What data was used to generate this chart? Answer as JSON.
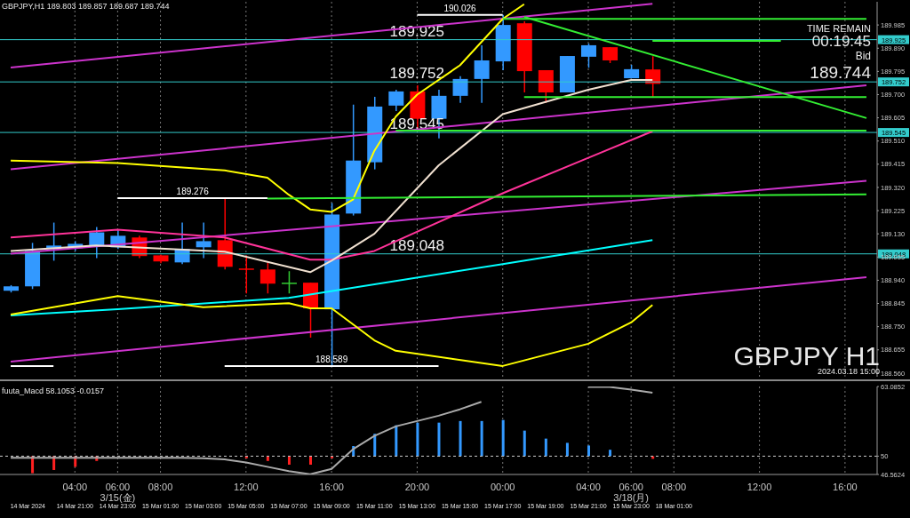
{
  "chart_data": [
    {
      "type": "candlestick",
      "title": "GBPJPY,H1 189.803 189.857 189.687 189.744",
      "categories": [
        null,
        null,
        null,
        null,
        null,
        null,
        null,
        null,
        null,
        null,
        null,
        null,
        null,
        null,
        null,
        null,
        null,
        null,
        null,
        null,
        null,
        null,
        null,
        null,
        null,
        null,
        null,
        null,
        null,
        null,
        null,
        null,
        null,
        null,
        null,
        null,
        null,
        null,
        null,
        null,
        null
      ],
      "tick_labels": "y",
      "grid": "x",
      "ylim": [
        188.545,
        190.08
      ],
      "yticks": [
        {
          "value": 188.56,
          "label": "188.560"
        },
        {
          "value": 188.655,
          "label": "188.655"
        },
        {
          "value": 188.75,
          "label": "188.750"
        },
        {
          "value": 188.845,
          "label": "188.845"
        },
        {
          "value": 188.94,
          "label": "188.940"
        },
        {
          "value": 189.035,
          "label": "189.035"
        },
        {
          "value": 189.13,
          "label": "189.130"
        },
        {
          "value": 189.225,
          "label": "189.225"
        },
        {
          "value": 189.32,
          "label": "189.320"
        },
        {
          "value": 189.415,
          "label": "189.415"
        },
        {
          "value": 189.51,
          "label": "189.510"
        },
        {
          "value": 189.605,
          "label": "189.605"
        },
        {
          "value": 189.7,
          "label": "189.700"
        },
        {
          "value": 189.795,
          "label": "189.795"
        },
        {
          "value": 189.89,
          "label": "189.890"
        },
        {
          "value": 189.985,
          "label": "189.985"
        }
      ],
      "series": [
        {
          "type": "line",
          "color": "#cc33cc",
          "values": [
            189.811,
            null,
            null,
            null,
            null,
            null,
            null,
            null,
            null,
            null,
            null,
            null,
            null,
            null,
            null,
            null,
            null,
            null,
            null,
            null,
            null,
            null,
            null,
            null,
            null,
            null,
            null,
            null,
            null,
            null,
            190.072,
            null,
            null,
            null,
            null,
            null,
            null,
            null,
            null,
            null,
            null
          ]
        },
        {
          "type": "line",
          "color": "#cc33cc",
          "values": [
            189.394,
            null,
            null,
            null,
            null,
            null,
            null,
            null,
            null,
            null,
            null,
            null,
            null,
            null,
            null,
            null,
            null,
            null,
            null,
            null,
            null,
            null,
            null,
            null,
            null,
            null,
            null,
            null,
            null,
            null,
            null,
            null,
            null,
            null,
            null,
            null,
            null,
            null,
            null,
            null,
            189.738
          ]
        },
        {
          "type": "line",
          "color": "#cc33cc",
          "values": [
            188.607,
            null,
            null,
            null,
            null,
            null,
            null,
            null,
            null,
            null,
            null,
            null,
            null,
            null,
            null,
            null,
            null,
            null,
            null,
            null,
            null,
            null,
            null,
            null,
            null,
            null,
            null,
            null,
            null,
            null,
            null,
            null,
            null,
            null,
            null,
            null,
            null,
            null,
            null,
            null,
            188.952
          ]
        },
        {
          "type": "line",
          "color": "#cc33cc",
          "values": [
            189.049,
            null,
            null,
            null,
            null,
            null,
            null,
            null,
            null,
            null,
            null,
            null,
            null,
            null,
            null,
            null,
            null,
            null,
            null,
            null,
            null,
            null,
            null,
            null,
            null,
            null,
            null,
            null,
            null,
            null,
            null,
            null,
            null,
            null,
            null,
            null,
            null,
            null,
            null,
            null,
            189.347
          ]
        },
        {
          "type": "line",
          "color": "#00ffff",
          "values": [
            188.796,
            null,
            null,
            null,
            null,
            188.821,
            null,
            null,
            null,
            null,
            null,
            null,
            null,
            188.868,
            null,
            null,
            null,
            null,
            null,
            null,
            null,
            null,
            null,
            189.006,
            null,
            null,
            null,
            null,
            null,
            null,
            189.104,
            null,
            null,
            null,
            null,
            null,
            null,
            null,
            null,
            null,
            null
          ]
        },
        {
          "type": "line",
          "color": "#ff3399",
          "values": [
            189.115,
            null,
            null,
            null,
            null,
            189.147,
            null,
            null,
            null,
            null,
            189.115,
            null,
            null,
            null,
            189.024,
            189.024,
            null,
            189.06,
            null,
            null,
            null,
            null,
            null,
            189.296,
            null,
            null,
            null,
            189.441,
            null,
            null,
            189.55,
            null,
            null,
            null,
            null,
            null,
            null,
            null,
            null,
            null,
            null
          ]
        },
        {
          "type": "line",
          "color": "#f0e0d0",
          "values": [
            189.06,
            null,
            null,
            null,
            189.082,
            null,
            null,
            null,
            null,
            null,
            189.057,
            null,
            null,
            null,
            188.973,
            189.02,
            null,
            189.13,
            null,
            null,
            189.41,
            null,
            null,
            189.62,
            null,
            189.67,
            null,
            189.72,
            null,
            189.76,
            189.76,
            null,
            null,
            null,
            null,
            null,
            null,
            null,
            null,
            null,
            null
          ]
        },
        {
          "type": "line",
          "color": "#ffff00",
          "values": [
            189.43,
            null,
            null,
            null,
            null,
            189.42,
            null,
            null,
            null,
            null,
            189.39,
            null,
            189.36,
            189.29,
            189.23,
            189.22,
            189.27,
            189.47,
            189.61,
            189.7,
            null,
            189.82,
            null,
            190.01,
            190.07,
            null,
            null,
            null,
            null,
            null,
            null,
            null,
            null,
            null,
            null,
            null,
            null,
            null,
            null,
            null,
            null
          ]
        },
        {
          "type": "line",
          "color": "#ffff00",
          "values": [
            188.8,
            null,
            null,
            null,
            null,
            188.875,
            null,
            null,
            null,
            188.83,
            null,
            null,
            null,
            188.846,
            188.825,
            188.825,
            null,
            188.694,
            188.651,
            null,
            null,
            null,
            null,
            188.589,
            null,
            null,
            null,
            188.68,
            null,
            188.767,
            188.839,
            null,
            null,
            null,
            null,
            null,
            null,
            null,
            null,
            null,
            null
          ]
        },
        {
          "type": "line",
          "color": "#33ee33",
          "values": [
            null,
            null,
            null,
            null,
            null,
            null,
            null,
            null,
            null,
            null,
            null,
            null,
            null,
            null,
            null,
            null,
            null,
            null,
            null,
            null,
            null,
            null,
            null,
            null,
            190.018,
            null,
            null,
            null,
            null,
            null,
            null,
            null,
            null,
            null,
            null,
            null,
            null,
            null,
            null,
            null,
            189.604
          ]
        },
        {
          "type": "line",
          "color": "#33ee33",
          "values": [
            null,
            null,
            null,
            null,
            null,
            null,
            null,
            null,
            null,
            null,
            null,
            null,
            null,
            null,
            null,
            null,
            null,
            null,
            null,
            null,
            null,
            null,
            null,
            190.01,
            null,
            null,
            null,
            null,
            null,
            null,
            null,
            null,
            null,
            null,
            null,
            null,
            null,
            null,
            null,
            null,
            190.01
          ]
        },
        {
          "type": "line",
          "color": "#33ee33",
          "values": [
            null,
            null,
            null,
            null,
            null,
            null,
            null,
            null,
            null,
            null,
            null,
            null,
            null,
            null,
            null,
            null,
            null,
            null,
            null,
            null,
            null,
            null,
            null,
            null,
            null,
            null,
            null,
            null,
            null,
            null,
            189.92,
            null,
            null,
            null,
            null,
            null,
            189.92,
            null,
            null,
            null,
            null
          ]
        },
        {
          "type": "line",
          "color": "#33ee33",
          "values": [
            null,
            null,
            null,
            null,
            null,
            null,
            null,
            null,
            null,
            null,
            null,
            null,
            null,
            null,
            null,
            null,
            null,
            null,
            null,
            null,
            null,
            null,
            null,
            null,
            189.69,
            null,
            null,
            null,
            null,
            null,
            null,
            null,
            null,
            null,
            null,
            null,
            null,
            null,
            null,
            null,
            189.69
          ]
        },
        {
          "type": "line",
          "color": "#33ee33",
          "values": [
            null,
            null,
            null,
            null,
            null,
            null,
            null,
            null,
            null,
            null,
            null,
            null,
            null,
            null,
            null,
            null,
            null,
            null,
            189.553,
            null,
            null,
            null,
            null,
            null,
            null,
            null,
            null,
            null,
            null,
            null,
            null,
            null,
            null,
            null,
            null,
            null,
            null,
            null,
            null,
            null,
            189.553
          ]
        },
        {
          "type": "line",
          "color": "#33ee33",
          "values": [
            null,
            null,
            null,
            null,
            null,
            null,
            null,
            null,
            null,
            null,
            null,
            null,
            189.274,
            null,
            null,
            null,
            null,
            null,
            null,
            null,
            null,
            null,
            null,
            null,
            null,
            null,
            null,
            null,
            null,
            null,
            null,
            null,
            null,
            null,
            null,
            null,
            null,
            null,
            null,
            null,
            189.292
          ]
        },
        {
          "type": "line",
          "color": "#ffffff",
          "name": "189.276",
          "values": [
            null,
            null,
            null,
            null,
            null,
            189.276,
            null,
            null,
            null,
            null,
            null,
            null,
            189.276,
            null,
            null,
            null,
            null,
            null,
            null,
            null,
            null,
            null,
            null,
            null,
            null,
            null,
            null,
            null,
            null,
            null,
            null,
            null,
            null,
            null,
            null,
            null,
            null,
            null,
            null,
            null,
            null
          ]
        },
        {
          "type": "line",
          "color": "#ffffff",
          "name": "190.026",
          "values": [
            null,
            null,
            null,
            null,
            null,
            null,
            null,
            null,
            null,
            null,
            null,
            null,
            null,
            null,
            null,
            null,
            null,
            null,
            null,
            190.026,
            null,
            null,
            null,
            190.026,
            null,
            null,
            null,
            null,
            null,
            null,
            null,
            null,
            null,
            null,
            null,
            null,
            null,
            null,
            null,
            null,
            null
          ]
        },
        {
          "type": "line",
          "color": "#ffffff",
          "name": "188.589",
          "values": [
            null,
            null,
            null,
            null,
            null,
            null,
            null,
            null,
            null,
            null,
            188.589,
            null,
            null,
            null,
            null,
            null,
            null,
            null,
            null,
            null,
            188.589,
            null,
            null,
            null,
            null,
            null,
            null,
            null,
            null,
            null,
            null,
            null,
            null,
            null,
            null,
            null,
            null,
            null,
            null,
            null,
            null
          ]
        },
        {
          "type": "line",
          "color": "#ffffff",
          "values": [
            188.589,
            null,
            188.589,
            null,
            null,
            null,
            null,
            null,
            null,
            null,
            null,
            null,
            null,
            null,
            null,
            null,
            null,
            null,
            null,
            null,
            null,
            null,
            null,
            null,
            null,
            null,
            null,
            null,
            null,
            null,
            null,
            null,
            null,
            null,
            null,
            null,
            null,
            null,
            null,
            null,
            null
          ]
        },
        {
          "type": "candlestick",
          "ohlc": [
            [
              188.897,
              188.92,
              188.89,
              188.915
            ],
            [
              188.915,
              189.093,
              188.904,
              189.06
            ],
            [
              189.068,
              189.176,
              189.02,
              189.082
            ],
            [
              189.071,
              189.1,
              189.06,
              189.089
            ],
            [
              189.082,
              189.158,
              189.031,
              189.136
            ],
            [
              189.075,
              189.147,
              189.068,
              189.122
            ],
            [
              189.115,
              189.122,
              189.031,
              189.039
            ],
            [
              189.042,
              189.045,
              189.01,
              189.017
            ],
            [
              189.013,
              189.176,
              189.006,
              189.068
            ],
            [
              189.075,
              189.176,
              189.031,
              189.1
            ],
            [
              189.104,
              189.276,
              188.984,
              188.995
            ],
            [
              188.988,
              189.042,
              188.886,
              188.984
            ],
            [
              188.984,
              189.013,
              188.886,
              188.926
            ],
            [
              188.93,
              188.977,
              188.886,
              188.93
            ],
            [
              188.93,
              188.93,
              188.705,
              188.825
            ],
            [
              188.821,
              189.256,
              188.589,
              189.209
            ],
            [
              189.213,
              189.659,
              189.205,
              189.43
            ],
            [
              189.423,
              189.691,
              189.394,
              189.651
            ],
            [
              189.655,
              189.72,
              189.633,
              189.713
            ],
            [
              189.713,
              189.738,
              189.56,
              189.601
            ],
            [
              189.601,
              189.72,
              189.521,
              189.695
            ],
            [
              189.695,
              189.775,
              189.666,
              189.764
            ],
            [
              189.764,
              189.902,
              189.666,
              189.84
            ],
            [
              189.836,
              190.026,
              189.8,
              189.985
            ],
            [
              189.992,
              190.0,
              189.709,
              189.796
            ],
            [
              189.8,
              189.8,
              189.666,
              189.709
            ],
            [
              189.709,
              189.858,
              189.709,
              189.858
            ],
            [
              189.855,
              189.909,
              189.81,
              189.902
            ],
            [
              189.894,
              189.894,
              189.829,
              189.84
            ],
            [
              189.767,
              189.822,
              189.767,
              189.804
            ],
            [
              189.803,
              189.857,
              189.687,
              189.744
            ],
            null,
            null,
            null,
            null,
            null,
            null,
            null,
            null,
            null,
            null
          ],
          "colors": [
            "#3399ff",
            "#3399ff",
            "#3399ff",
            "#3399ff",
            "#3399ff",
            "#3399ff",
            "#ff0000",
            "#ff0000",
            "#3399ff",
            "#3399ff",
            "#ff0000",
            "#ff0000",
            "#ff0000",
            "#33cc33",
            "#ff0000",
            "#3399ff",
            "#3399ff",
            "#3399ff",
            "#3399ff",
            "#ff0000",
            "#3399ff",
            "#3399ff",
            "#3399ff",
            "#3399ff",
            "#ff0000",
            "#ff0000",
            "#3399ff",
            "#3399ff",
            "#ff0000",
            "#3399ff",
            "#ff0000",
            null,
            null,
            null,
            null,
            null,
            null,
            null,
            null,
            null,
            null
          ]
        }
      ],
      "ref_lines": [
        {
          "axis": "y",
          "value": 189.925,
          "label": "189.925",
          "color": "#33cccc"
        },
        {
          "axis": "y",
          "value": 189.752,
          "label": "189.752",
          "color": "#33cccc"
        },
        {
          "axis": "y",
          "value": 189.545,
          "label": "189.545",
          "color": "#33cccc"
        },
        {
          "axis": "y",
          "value": 189.048,
          "label": "189.048",
          "color": "#33cccc"
        }
      ],
      "annotations": [
        "TIME REMAIN",
        "00:19:45",
        "Bid",
        "189.744",
        "GBPJPY H1",
        "2024.03.18 15:00"
      ]
    },
    {
      "type": "bar",
      "title": "fuuta_Macd 58.1053 -0.0157",
      "categories": [
        null,
        null,
        null,
        "04:00",
        null,
        "06:00 3/15(金)",
        null,
        "08:00",
        null,
        null,
        null,
        "12:00",
        null,
        null,
        null,
        "16:00",
        null,
        null,
        null,
        "20:00",
        null,
        null,
        null,
        "00:00",
        null,
        null,
        null,
        "04:00",
        null,
        "06:00 3/18(月)",
        null,
        "08:00",
        null,
        null,
        null,
        "12:00",
        null,
        null,
        null,
        "16:00",
        null
      ],
      "annotations": [
        "14 Mar 2024",
        "14 Mar 21:00",
        "14 Mar 23:00",
        "15 Mar 01:00",
        "15 Mar 03:00",
        "15 Mar 05:00",
        "15 Mar 07:00",
        "15 Mar 09:00",
        "15 Mar 11:00",
        "15 Mar 13:00",
        "15 Mar 15:00",
        "15 Mar 17:00",
        "15 Mar 19:00",
        "15 Mar 21:00",
        "15 Mar 23:00",
        "18 Mar 01:00"
      ],
      "grid": "x",
      "ylim": [
        46.5624,
        63.0852
      ],
      "yticks": [
        46.5624,
        50,
        63.0852
      ],
      "series": [
        {
          "type": "bar",
          "base": [
            null,
            50,
            50,
            50,
            50,
            null,
            null,
            null,
            null,
            null,
            null,
            50,
            50,
            50,
            50,
            50,
            50,
            50,
            50,
            50,
            50,
            50,
            50,
            50,
            50,
            50,
            50,
            50,
            50,
            null,
            50,
            null,
            null,
            null,
            null,
            null,
            null,
            null,
            null,
            null,
            null
          ],
          "values": [
            null,
            -3.2,
            -2.6,
            -2.0,
            -0.9,
            null,
            null,
            null,
            null,
            null,
            null,
            -0.4,
            -0.9,
            -1.6,
            -1.6,
            -0.4,
            1.9,
            4.2,
            5.8,
            6.3,
            6.3,
            6.6,
            6.6,
            6.8,
            4.8,
            3.3,
            2.5,
            2.0,
            1.2,
            null,
            -0.5,
            null,
            null,
            null,
            null,
            null,
            null,
            null,
            null,
            null,
            null
          ],
          "colors": [
            null,
            "#ff2020",
            "#ff2020",
            "#ff2020",
            "#ff2020",
            null,
            null,
            null,
            null,
            null,
            null,
            "#ff2020",
            "#ff2020",
            "#ff2020",
            "#ff2020",
            "#ff2020",
            "#3399ff",
            "#3399ff",
            "#3399ff",
            "#3399ff",
            "#3399ff",
            "#3399ff",
            "#3399ff",
            "#3399ff",
            "#3399ff",
            "#3399ff",
            "#3399ff",
            "#3399ff",
            "#3399ff",
            null,
            "#ff2020",
            null,
            null,
            null,
            null,
            null,
            null,
            null,
            null,
            null,
            null
          ]
        },
        {
          "type": "line",
          "color": "#aaaaaa",
          "values": [
            49.7,
            49.7,
            49.7,
            49.7,
            49.7,
            49.7,
            49.7,
            49.7,
            49.7,
            49.6,
            49.4,
            48.8,
            48.0,
            47.2,
            46.6,
            47.6,
            51.3,
            53.8,
            55.6,
            56.6,
            57.6,
            58.8,
            60.2,
            null,
            null,
            null,
            null,
            63.0,
            63.0,
            62.5,
            61.9,
            null,
            null,
            null,
            null,
            null,
            null,
            null,
            null,
            null,
            null
          ]
        }
      ],
      "ref_lines": [
        {
          "axis": "y",
          "value": 50,
          "color": "#cccccc",
          "line_style": "dashed"
        }
      ]
    }
  ]
}
